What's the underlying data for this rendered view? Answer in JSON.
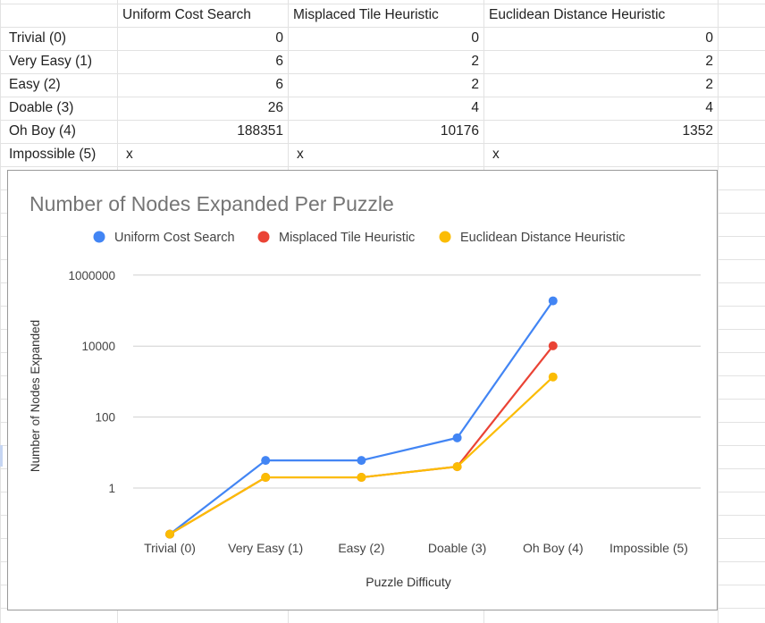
{
  "sheet": {
    "headers": [
      "",
      "Uniform Cost Search",
      "Misplaced Tile Heuristic",
      "Euclidean Distance Heuristic"
    ],
    "rows": [
      [
        "Trivial (0)",
        "0",
        "0",
        "0"
      ],
      [
        "Very Easy (1)",
        "6",
        "2",
        "2"
      ],
      [
        "Easy (2)",
        "6",
        "2",
        "2"
      ],
      [
        "Doable (3)",
        "26",
        "4",
        "4"
      ],
      [
        "Oh Boy (4)",
        "188351",
        "10176",
        "1352"
      ],
      [
        "Impossible (5)",
        "x",
        "x",
        "x"
      ]
    ]
  },
  "chart_data": {
    "type": "line",
    "title": "Number of Nodes Expanded Per Puzzle",
    "xlabel": "Puzzle Difficuty",
    "ylabel": "Number of Nodes Expanded",
    "y_scale": "log",
    "yticks": [
      1,
      100,
      10000,
      1000000
    ],
    "ytick_labels": [
      "1",
      "100",
      "10000",
      "1000000"
    ],
    "grid": true,
    "legend": "top",
    "categories": [
      "Trivial (0)",
      "Very Easy (1)",
      "Easy (2)",
      "Doable (3)",
      "Oh Boy (4)",
      "Impossible (5)"
    ],
    "series": [
      {
        "name": "Uniform Cost Search",
        "color": "#4285f4",
        "values": [
          0,
          6,
          6,
          26,
          188351,
          null
        ]
      },
      {
        "name": "Misplaced Tile Heuristic",
        "color": "#ea4335",
        "values": [
          0,
          2,
          2,
          4,
          10176,
          null
        ]
      },
      {
        "name": "Euclidean Distance Heuristic",
        "color": "#fbbc04",
        "values": [
          0,
          2,
          2,
          4,
          1352,
          null
        ]
      }
    ]
  }
}
